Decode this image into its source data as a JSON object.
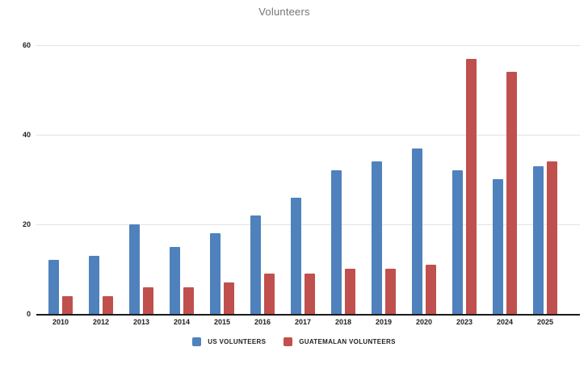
{
  "chart_data": {
    "type": "bar",
    "title": "Volunteers",
    "categories": [
      "2010",
      "2012",
      "2013",
      "2014",
      "2015",
      "2016",
      "2017",
      "2018",
      "2019",
      "2020",
      "2023",
      "2024",
      "2025"
    ],
    "series": [
      {
        "name": "US VOLUNTEERS",
        "color": "#4f81bd",
        "values": [
          12,
          13,
          20,
          15,
          18,
          22,
          26,
          32,
          34,
          37,
          32,
          30,
          33
        ]
      },
      {
        "name": "GUATEMALAN VOLUNTEERS",
        "color": "#c0504d",
        "values": [
          4,
          4,
          6,
          6,
          7,
          9,
          9,
          10,
          10,
          11,
          57,
          54,
          34
        ]
      }
    ],
    "xlabel": "",
    "ylabel": "",
    "ylim": [
      0,
      60
    ],
    "yticks": [
      0,
      20,
      40,
      60
    ],
    "grid": true,
    "legend_position": "bottom",
    "colors": {
      "title_text": "#757575",
      "axis_line": "#1b1b1b",
      "gridline": "#e2e2e2",
      "tick_text": "#1f1f1f"
    }
  }
}
